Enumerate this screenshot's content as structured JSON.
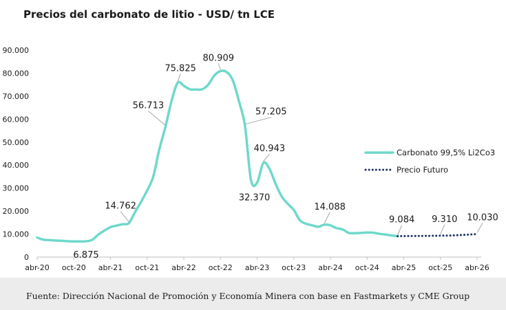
{
  "title": "Precios del carbonato de litio - USD/ tn LCE",
  "source": "Fuente: Dirección Nacional de Promoción y Economía Minera con base en Fastmarkets y CME Group",
  "colors": {
    "historical": "#6fd8cb",
    "futures": "#1f3566",
    "text": "#1a1a1a"
  },
  "chart_data": {
    "type": "line",
    "title": "Precios del carbonato de litio - USD/ tn LCE",
    "xlabel": "",
    "ylabel": "",
    "ylim": [
      0,
      90000
    ],
    "yticks": [
      "0",
      "10.000",
      "20.000",
      "30.000",
      "40.000",
      "50.000",
      "60.000",
      "70.000",
      "80.000",
      "90.000"
    ],
    "xlim": [
      "2020-04",
      "2026-04"
    ],
    "xticks": [
      "abr-20",
      "oct-20",
      "abr-21",
      "oct-21",
      "abr-22",
      "oct-22",
      "abr-23",
      "oct-23",
      "abr-24",
      "oct-24",
      "abr-25",
      "oct-25",
      "abr-26"
    ],
    "grid": false,
    "legend_position": "right",
    "series": [
      {
        "name": "Carbonato 99,5% Li2Co3",
        "style": "solid",
        "color": "#6fd8cb",
        "points": [
          [
            "2020-04",
            8500
          ],
          [
            "2020-05",
            7600
          ],
          [
            "2020-06",
            7400
          ],
          [
            "2020-07",
            7200
          ],
          [
            "2020-08",
            7100
          ],
          [
            "2020-09",
            6900
          ],
          [
            "2020-10",
            6800
          ],
          [
            "2020-11",
            6800
          ],
          [
            "2020-12",
            6875
          ],
          [
            "2021-01",
            7500
          ],
          [
            "2021-02",
            9800
          ],
          [
            "2021-03",
            11500
          ],
          [
            "2021-04",
            13000
          ],
          [
            "2021-05",
            13700
          ],
          [
            "2021-06",
            14300
          ],
          [
            "2021-07",
            14762
          ],
          [
            "2021-08",
            19500
          ],
          [
            "2021-09",
            24000
          ],
          [
            "2021-10",
            29000
          ],
          [
            "2021-11",
            35000
          ],
          [
            "2021-12",
            47000
          ],
          [
            "2022-01",
            56713
          ],
          [
            "2022-02",
            68000
          ],
          [
            "2022-03",
            75825
          ],
          [
            "2022-04",
            74500
          ],
          [
            "2022-05",
            73000
          ],
          [
            "2022-06",
            72900
          ],
          [
            "2022-07",
            73000
          ],
          [
            "2022-08",
            75000
          ],
          [
            "2022-09",
            79000
          ],
          [
            "2022-10",
            80909
          ],
          [
            "2022-11",
            80500
          ],
          [
            "2022-12",
            77000
          ],
          [
            "2023-01",
            68000
          ],
          [
            "2023-02",
            57205
          ],
          [
            "2023-03",
            33500
          ],
          [
            "2023-04",
            32370
          ],
          [
            "2023-05",
            40943
          ],
          [
            "2023-06",
            38500
          ],
          [
            "2023-07",
            32000
          ],
          [
            "2023-08",
            26500
          ],
          [
            "2023-09",
            23200
          ],
          [
            "2023-10",
            20500
          ],
          [
            "2023-11",
            16000
          ],
          [
            "2023-12",
            14500
          ],
          [
            "2024-01",
            13800
          ],
          [
            "2024-02",
            13200
          ],
          [
            "2024-03",
            14088
          ],
          [
            "2024-04",
            13800
          ],
          [
            "2024-05",
            12600
          ],
          [
            "2024-06",
            12000
          ],
          [
            "2024-07",
            10500
          ],
          [
            "2024-08",
            10400
          ],
          [
            "2024-09",
            10500
          ],
          [
            "2024-10",
            10700
          ],
          [
            "2024-11",
            10600
          ],
          [
            "2024-12",
            10100
          ],
          [
            "2025-01",
            9800
          ],
          [
            "2025-02",
            9400
          ],
          [
            "2025-03",
            9084
          ]
        ]
      },
      {
        "name": "Precio Futuro",
        "style": "dotted",
        "color": "#1f3566",
        "points": [
          [
            "2025-03",
            9084
          ],
          [
            "2025-05",
            9150
          ],
          [
            "2025-07",
            9200
          ],
          [
            "2025-09",
            9280
          ],
          [
            "2025-10",
            9310
          ],
          [
            "2025-12",
            9420
          ],
          [
            "2026-02",
            9700
          ],
          [
            "2026-04",
            10030
          ]
        ]
      }
    ],
    "annotations": [
      {
        "label": "6.875",
        "x": "2020-12",
        "y": 6875,
        "leader": false
      },
      {
        "label": "14.762",
        "x": "2021-07",
        "y": 14762,
        "leader": true
      },
      {
        "label": "56.713",
        "x": "2022-01",
        "y": 56713,
        "leader": true
      },
      {
        "label": "75.825",
        "x": "2022-03",
        "y": 75825,
        "leader": true
      },
      {
        "label": "80.909",
        "x": "2022-10",
        "y": 80909,
        "leader": true
      },
      {
        "label": "57.205",
        "x": "2023-02",
        "y": 57205,
        "leader": true
      },
      {
        "label": "40.943",
        "x": "2023-05",
        "y": 40943,
        "leader": true
      },
      {
        "label": "32.370",
        "x": "2023-04",
        "y": 32370,
        "leader": false
      },
      {
        "label": "14.088",
        "x": "2024-03",
        "y": 14088,
        "leader": true
      },
      {
        "label": "9.084",
        "x": "2025-03",
        "y": 9084,
        "leader": true
      },
      {
        "label": "9.310",
        "x": "2025-10",
        "y": 9310,
        "leader": true
      },
      {
        "label": "10.030",
        "x": "2026-04",
        "y": 10030,
        "leader": true
      }
    ]
  }
}
